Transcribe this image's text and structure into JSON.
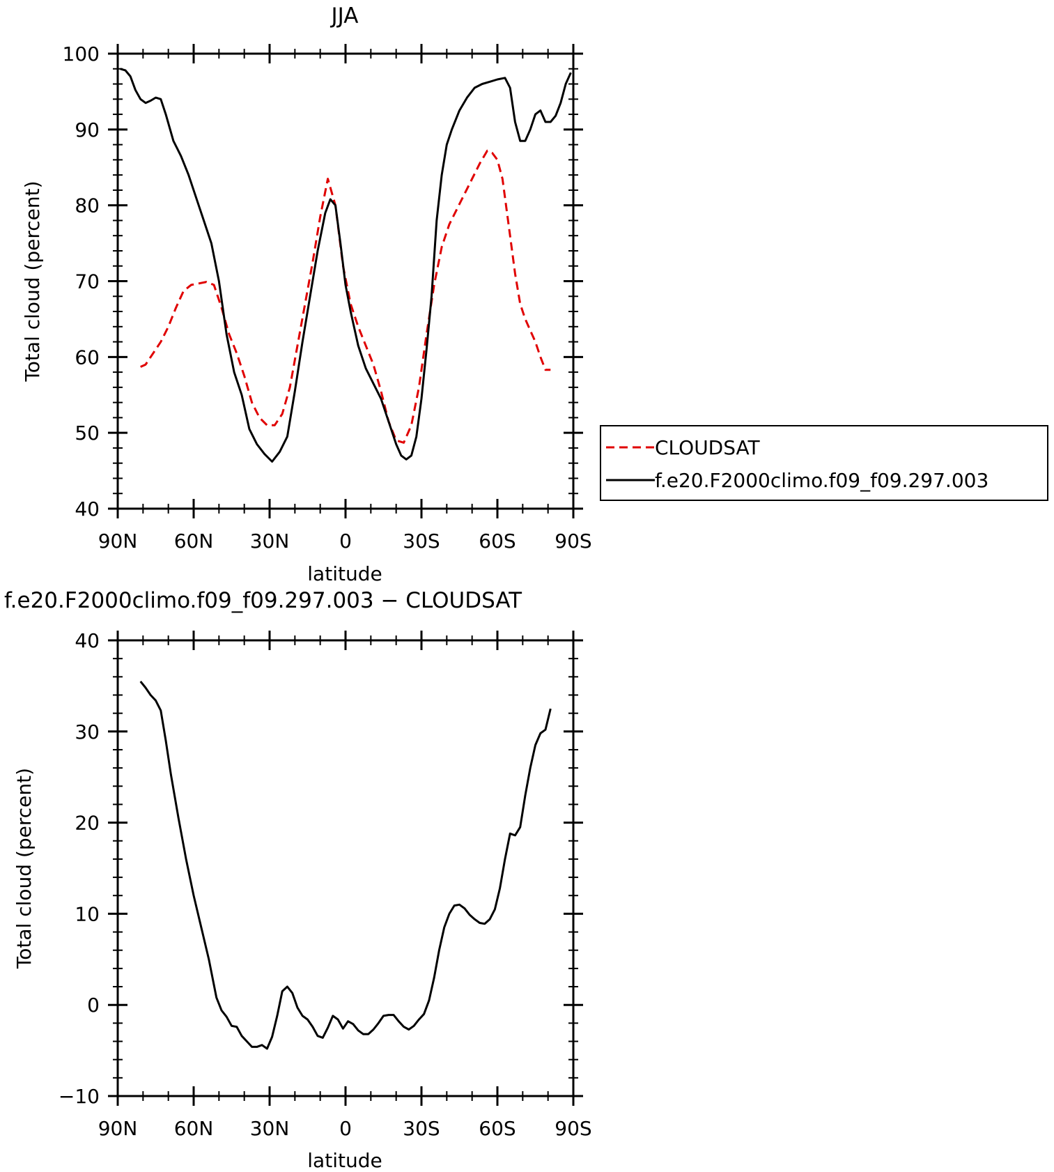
{
  "chart_data": [
    {
      "type": "line",
      "title": "JJA",
      "xlabel": "latitude",
      "ylabel": "Total cloud (percent)",
      "xlim": [
        90,
        -90
      ],
      "ylim": [
        40,
        100
      ],
      "x_ticks": [
        90,
        60,
        30,
        0,
        -30,
        -60,
        -90
      ],
      "x_tick_labels": [
        "90N",
        "60N",
        "30N",
        "0",
        "30S",
        "60S",
        "90S"
      ],
      "y_ticks": [
        40,
        50,
        60,
        70,
        80,
        90,
        100
      ],
      "y_tick_labels": [
        "40",
        "50",
        "60",
        "70",
        "80",
        "90",
        "100"
      ],
      "legend": "outside-right",
      "series": [
        {
          "name": "CLOUDSAT",
          "color": "#e00000",
          "dash": "dashed",
          "x": [
            81,
            79,
            76,
            73,
            70,
            67,
            64,
            61,
            58,
            55,
            52,
            49,
            46,
            43,
            40,
            37,
            34,
            31,
            28,
            25,
            22,
            19,
            16,
            13,
            10,
            7,
            4,
            1,
            -2,
            -5,
            -8,
            -11,
            -14,
            -17,
            -20,
            -23,
            -26,
            -29,
            -32,
            -35,
            -38,
            -41,
            -44,
            -47,
            -50,
            -53,
            -56,
            -58,
            -60,
            -62,
            -65,
            -67,
            -69,
            -71,
            -73,
            -75,
            -77,
            -79,
            -81
          ],
          "y": [
            58.7,
            59,
            60.5,
            62,
            64,
            66.5,
            68.7,
            69.5,
            69.7,
            69.9,
            69.5,
            66.5,
            63,
            60.5,
            57.5,
            54,
            52,
            51,
            51,
            52.5,
            56,
            61.5,
            67,
            72.5,
            78.5,
            83.5,
            80,
            72,
            67,
            64,
            61.5,
            59,
            55.5,
            51.5,
            49,
            48.7,
            51,
            56,
            63,
            69.5,
            74.5,
            77.5,
            79.5,
            81.5,
            83.5,
            85.5,
            87.2,
            86.9,
            86,
            83.5,
            76,
            71,
            67,
            65,
            63.5,
            62,
            60,
            58.3,
            58.3
          ]
        },
        {
          "name": "f.e20.F2000climo.f09_f09.297.003",
          "color": "#000000",
          "dash": "solid",
          "x": [
            89,
            87,
            85,
            83,
            81,
            79,
            77,
            75,
            73,
            71,
            68,
            65,
            62,
            59,
            56,
            53,
            50,
            47,
            44,
            41,
            38,
            35,
            32,
            29,
            26,
            23,
            20,
            17,
            14,
            11,
            8,
            6,
            4,
            2,
            0,
            -2,
            -5,
            -8,
            -11,
            -14,
            -17,
            -20,
            -22,
            -24,
            -26,
            -28,
            -30,
            -32,
            -34,
            -36,
            -38,
            -40,
            -42,
            -45,
            -48,
            -51,
            -54,
            -57,
            -60,
            -63,
            -65,
            -67,
            -69,
            -71,
            -73,
            -75,
            -77,
            -79,
            -81,
            -83,
            -85,
            -87,
            -89
          ],
          "y": [
            98,
            97.8,
            97,
            95.2,
            94,
            93.5,
            93.8,
            94.2,
            94,
            92,
            88.5,
            86.5,
            84,
            81,
            78,
            75,
            70,
            63,
            58,
            55,
            50.5,
            48.5,
            47.2,
            46.2,
            47.5,
            49.5,
            55.5,
            62,
            68,
            74,
            79,
            80.8,
            80,
            75,
            69.5,
            66,
            61.5,
            58.5,
            56.5,
            54.5,
            51.5,
            48.5,
            47,
            46.5,
            47,
            49.5,
            54.5,
            61,
            68,
            78,
            84,
            88,
            90,
            92.5,
            94.2,
            95.5,
            96,
            96.3,
            96.6,
            96.8,
            95.5,
            91,
            88.5,
            88.5,
            90,
            92,
            92.5,
            91,
            91,
            91.8,
            93.5,
            96,
            97.5
          ]
        }
      ]
    },
    {
      "type": "line",
      "title": "f.e20.F2000climo.f09_f09.297.003 − CLOUDSAT",
      "xlabel": "latitude",
      "ylabel": "Total cloud (percent)",
      "xlim": [
        90,
        -90
      ],
      "ylim": [
        -10,
        40
      ],
      "x_ticks": [
        90,
        60,
        30,
        0,
        -30,
        -60,
        -90
      ],
      "x_tick_labels": [
        "90N",
        "60N",
        "30N",
        "0",
        "30S",
        "60S",
        "90S"
      ],
      "y_ticks": [
        -10,
        0,
        10,
        20,
        30,
        40
      ],
      "y_tick_labels": [
        "−10",
        "0",
        "10",
        "20",
        "30",
        "40"
      ],
      "series": [
        {
          "color": "#000000",
          "dash": "solid",
          "x": [
            81,
            79,
            77,
            75,
            73,
            71,
            69,
            66,
            63,
            60,
            57,
            54,
            51,
            49,
            47,
            45,
            43,
            41,
            39,
            37,
            35,
            33,
            31,
            29,
            27,
            25,
            23,
            21,
            19,
            17,
            15,
            13,
            11,
            9,
            7,
            5,
            3,
            1,
            -1,
            -3,
            -5,
            -7,
            -9,
            -11,
            -13,
            -15,
            -17,
            -19,
            -21,
            -23,
            -25,
            -27,
            -29,
            -31,
            -33,
            -35,
            -37,
            -39,
            -41,
            -43,
            -45,
            -47,
            -49,
            -51,
            -53,
            -55,
            -57,
            -59,
            -61,
            -63,
            -65,
            -67,
            -69,
            -71,
            -73,
            -75,
            -77,
            -79,
            -81
          ],
          "y": [
            35.5,
            34.8,
            34,
            33.4,
            32.3,
            29,
            25.3,
            20.5,
            16,
            12,
            8.5,
            5,
            0.8,
            -0.6,
            -1.3,
            -2.3,
            -2.4,
            -3.4,
            -4,
            -4.6,
            -4.6,
            -4.4,
            -4.8,
            -3.5,
            -1.2,
            1.5,
            2,
            1.3,
            -0.3,
            -1.2,
            -1.6,
            -2.4,
            -3.4,
            -3.6,
            -2.5,
            -1.2,
            -1.6,
            -2.6,
            -1.8,
            -2.1,
            -2.8,
            -3.2,
            -3.2,
            -2.7,
            -2,
            -1.2,
            -1.1,
            -1.1,
            -1.8,
            -2.4,
            -2.7,
            -2.3,
            -1.6,
            -1,
            0.5,
            3,
            6,
            8.5,
            10,
            10.9,
            11,
            10.6,
            9.9,
            9.4,
            9,
            8.9,
            9.4,
            10.5,
            12.8,
            16,
            18.8,
            18.6,
            19.5,
            23,
            26,
            28.5,
            29.8,
            30.2,
            32.5
          ]
        }
      ]
    }
  ]
}
